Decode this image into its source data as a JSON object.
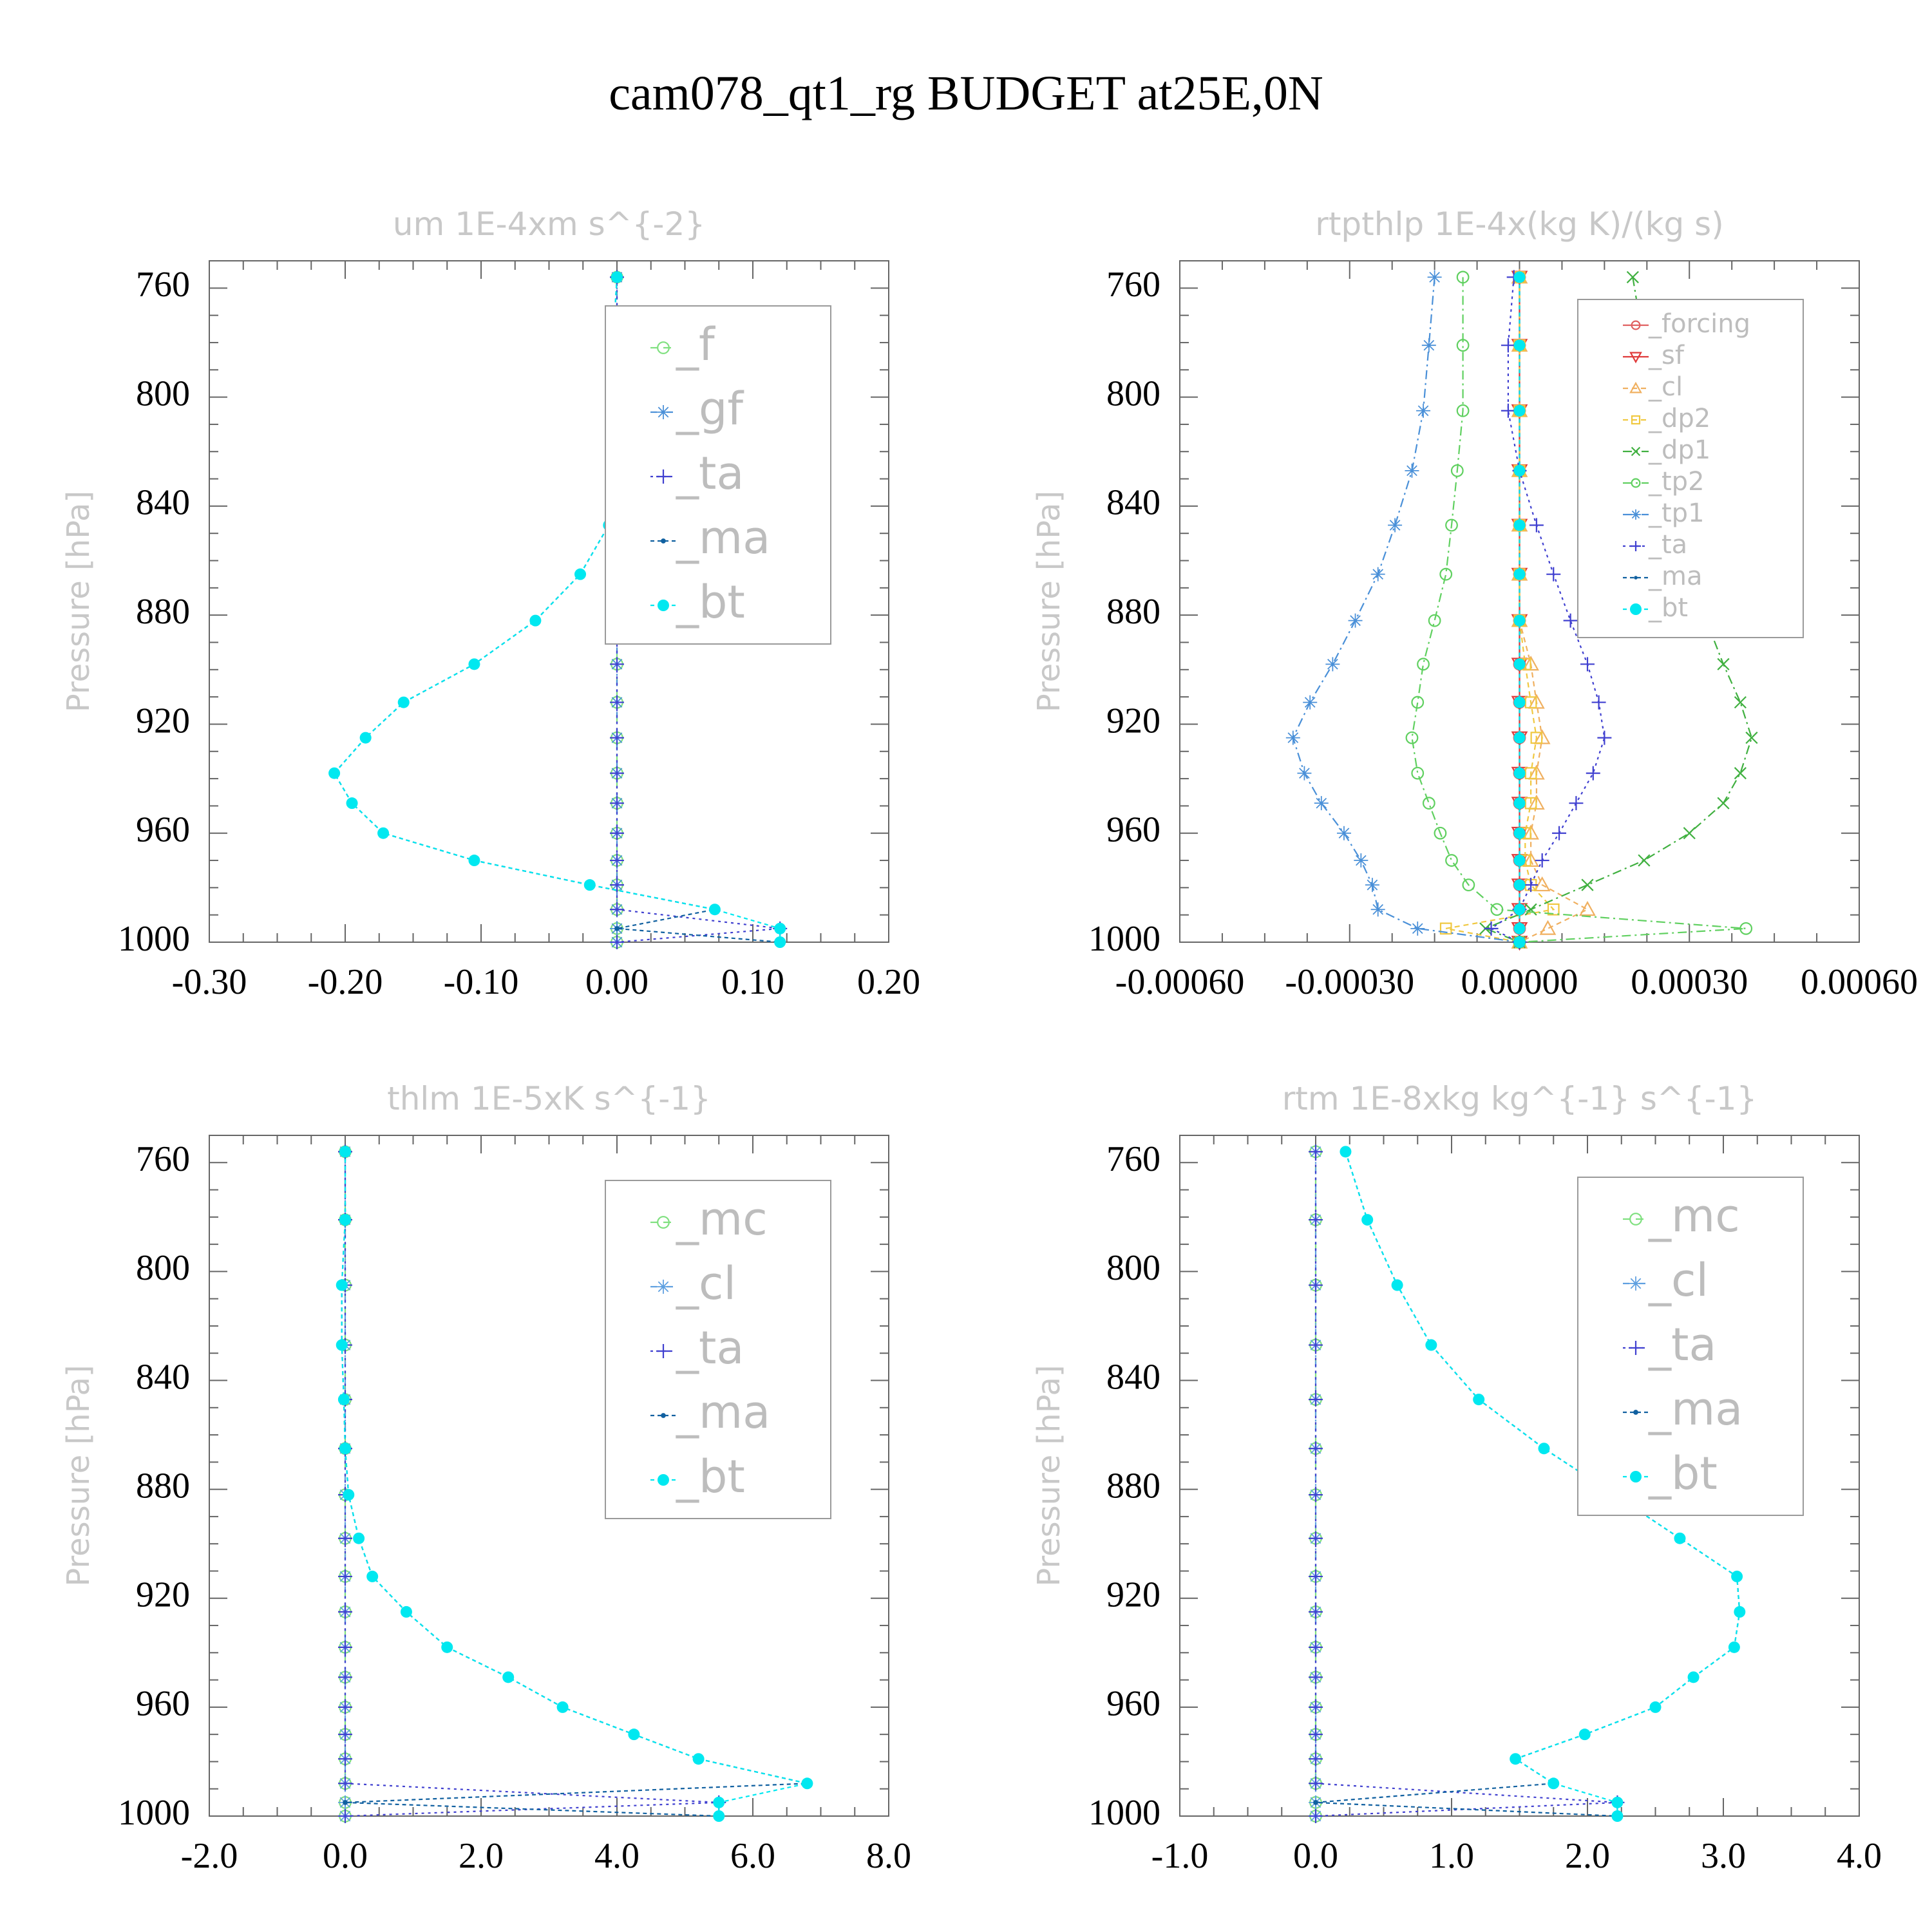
{
  "figure": {
    "title": "cam078_qt1_rg  BUDGET at25E,0N"
  },
  "colors": {
    "f": "#7fe07f",
    "forcing": "#e06060",
    "sf": "#e03a3a",
    "cl": "#5fa0e0",
    "cl_rtp": "#f0b060",
    "dp2": "#f0c840",
    "dp1": "#40b040",
    "tp2": "#60d060",
    "tp1": "#4a90d8",
    "gf": "#4a90d8",
    "mc": "#7fe07f",
    "ta": "#4040d0",
    "ma": "#1060a0",
    "bt": "#00e8f0",
    "frame": "#666666"
  },
  "chart_data": [
    {
      "id": "um",
      "type": "line",
      "title": "um  1E-4xm s^{-2}",
      "ylabel": "Pressure [hPa]",
      "xlim": [
        -0.3,
        0.2
      ],
      "ylim": [
        1000,
        750
      ],
      "x_ticks": [
        "-0.30",
        "-0.20",
        "-0.10",
        "0.00",
        "0.10",
        "0.20"
      ],
      "x_tick_values": [
        -0.3,
        -0.2,
        -0.1,
        0.0,
        0.1,
        0.2
      ],
      "y_ticks": [
        "760",
        "800",
        "840",
        "880",
        "920",
        "960",
        "1000"
      ],
      "y_tick_values": [
        760,
        800,
        840,
        880,
        920,
        960,
        1000
      ],
      "legend_position": "top-right",
      "legend_font_size": 70,
      "pressure": [
        756,
        781,
        805,
        827,
        847,
        865,
        882,
        898,
        912,
        925,
        938,
        949,
        960,
        970,
        979,
        988,
        995,
        1000
      ],
      "series": [
        {
          "name": "_f",
          "marker": "circle-open",
          "color_key": "f",
          "dash": "12 8",
          "values": [
            0,
            0,
            0,
            0,
            0,
            0,
            0,
            0,
            0,
            0,
            0,
            0,
            0,
            0,
            0,
            0,
            0,
            0
          ]
        },
        {
          "name": "_gf",
          "marker": "star",
          "color_key": "gf",
          "dash": "10 6 3 6",
          "values": [
            0,
            0,
            0,
            0,
            0,
            0,
            0,
            0,
            0,
            0,
            0,
            0,
            0,
            0,
            0,
            0,
            0,
            0
          ]
        },
        {
          "name": "_ta",
          "marker": "plus",
          "color_key": "ta",
          "dash": "4 6",
          "values": [
            0,
            0,
            0,
            0,
            0,
            0,
            0,
            0,
            0,
            0,
            0,
            0,
            0,
            0,
            0,
            0,
            0.12,
            0
          ]
        },
        {
          "name": "_ma",
          "marker": "dot",
          "color_key": "ma",
          "dash": "6 5",
          "values": [
            0.0,
            -0.003,
            0.007,
            0.006,
            -0.006,
            -0.027,
            -0.06,
            -0.105,
            -0.157,
            -0.185,
            -0.208,
            -0.195,
            -0.172,
            -0.105,
            -0.02,
            0.072,
            0.0,
            0.12
          ]
        },
        {
          "name": "_bt",
          "marker": "filled-circle",
          "color_key": "bt",
          "dash": "6 5",
          "values": [
            0.0,
            -0.003,
            0.007,
            0.006,
            -0.006,
            -0.027,
            -0.06,
            -0.105,
            -0.157,
            -0.185,
            -0.208,
            -0.195,
            -0.172,
            -0.105,
            -0.02,
            0.072,
            0.12,
            0.12
          ]
        }
      ]
    },
    {
      "id": "rtpthlp",
      "type": "line",
      "title": "rtpthlp  1E-4x(kg K)/(kg s)",
      "ylabel": "Pressure [hPa]",
      "xlim": [
        -0.0006,
        0.0006
      ],
      "ylim": [
        1000,
        750
      ],
      "x_ticks": [
        "-0.00060",
        "-0.00030",
        "0.00000",
        "0.00030",
        "0.00060"
      ],
      "x_tick_values": [
        -0.0006,
        -0.0003,
        0.0,
        0.0003,
        0.0006
      ],
      "y_ticks": [
        "760",
        "800",
        "840",
        "880",
        "920",
        "960",
        "1000"
      ],
      "y_tick_values": [
        760,
        800,
        840,
        880,
        920,
        960,
        1000
      ],
      "legend_position": "top-right",
      "legend_font_size": 40,
      "pressure": [
        756,
        781,
        805,
        827,
        847,
        865,
        882,
        898,
        912,
        925,
        938,
        949,
        960,
        970,
        979,
        988,
        995,
        1000
      ],
      "series": [
        {
          "name": "_forcing",
          "marker": "circle-open",
          "color_key": "forcing",
          "dash": "",
          "values": [
            0,
            0,
            0,
            0,
            0,
            0,
            0,
            0,
            0,
            0,
            0,
            0,
            0,
            0,
            0,
            0,
            0,
            0
          ]
        },
        {
          "name": "_sf",
          "marker": "triangle-down",
          "color_key": "sf",
          "dash": "",
          "values": [
            0,
            0,
            0,
            0,
            0,
            0,
            0,
            0,
            0,
            0,
            0,
            0,
            0,
            0,
            0,
            0,
            0,
            0
          ]
        },
        {
          "name": "_cl",
          "marker": "triangle-up",
          "color_key": "cl_rtp",
          "dash": "8 6",
          "values": [
            0,
            0,
            0,
            0,
            0,
            0,
            0,
            2e-05,
            3e-05,
            4e-05,
            3e-05,
            3e-05,
            2e-05,
            2e-05,
            4e-05,
            0.00012,
            5e-05,
            0
          ]
        },
        {
          "name": "_dp2",
          "marker": "square-open",
          "color_key": "dp2",
          "dash": "8 6",
          "values": [
            0,
            0,
            0,
            0,
            0,
            0,
            0,
            1e-05,
            2e-05,
            3e-05,
            2e-05,
            2e-05,
            1e-05,
            1e-05,
            2e-05,
            6e-05,
            -0.00013,
            0
          ]
        },
        {
          "name": "_dp1",
          "marker": "x",
          "color_key": "dp1",
          "dash": "14 6 3 6",
          "values": [
            0.0002,
            0.00022,
            0.00024,
            0.00026,
            0.00028,
            0.00031,
            0.00033,
            0.00036,
            0.00039,
            0.00041,
            0.00039,
            0.00036,
            0.0003,
            0.00022,
            0.00012,
            2e-05,
            -6e-05,
            0
          ]
        },
        {
          "name": "_tp2",
          "marker": "circle-open",
          "color_key": "tp2",
          "dash": "14 6 3 6",
          "values": [
            -0.0001,
            -0.0001,
            -0.0001,
            -0.00011,
            -0.00012,
            -0.00013,
            -0.00015,
            -0.00017,
            -0.00018,
            -0.00019,
            -0.00018,
            -0.00016,
            -0.00014,
            -0.00012,
            -9e-05,
            -4e-05,
            0.0004,
            0
          ]
        },
        {
          "name": "_tp1",
          "marker": "star",
          "color_key": "tp1",
          "dash": "14 6 3 6",
          "values": [
            -0.00015,
            -0.00016,
            -0.00017,
            -0.00019,
            -0.00022,
            -0.00025,
            -0.00029,
            -0.00033,
            -0.00037,
            -0.0004,
            -0.00038,
            -0.00035,
            -0.00031,
            -0.00028,
            -0.00026,
            -0.00025,
            -0.00018,
            0
          ]
        },
        {
          "name": "_ta",
          "marker": "plus",
          "color_key": "ta",
          "dash": "4 6",
          "values": [
            -1e-05,
            -2e-05,
            -2e-05,
            0.0,
            3e-05,
            6e-05,
            9e-05,
            0.00012,
            0.00014,
            0.00015,
            0.00013,
            0.0001,
            7e-05,
            4e-05,
            2e-05,
            0.0,
            -5e-05,
            0
          ]
        },
        {
          "name": "_ma",
          "marker": "dot",
          "color_key": "ma",
          "dash": "6 5",
          "values": [
            0,
            0,
            0,
            0,
            0,
            0,
            0,
            0,
            0,
            0,
            0,
            0,
            0,
            0,
            0,
            0,
            0,
            0
          ]
        },
        {
          "name": "_bt",
          "marker": "filled-circle",
          "color_key": "bt",
          "dash": "6 5",
          "values": [
            0,
            0,
            0,
            0,
            0,
            0,
            0,
            0,
            0,
            0,
            0,
            0,
            0,
            0,
            0,
            0,
            0,
            0
          ]
        }
      ]
    },
    {
      "id": "thlm",
      "type": "line",
      "title": "thlm  1E-5xK s^{-1}",
      "ylabel": "Pressure [hPa]",
      "xlim": [
        -2.0,
        8.0
      ],
      "ylim": [
        1000,
        750
      ],
      "x_ticks": [
        "-2.0",
        "0.0",
        "2.0",
        "4.0",
        "6.0",
        "8.0"
      ],
      "x_tick_values": [
        -2.0,
        0.0,
        2.0,
        4.0,
        6.0,
        8.0
      ],
      "y_ticks": [
        "760",
        "800",
        "840",
        "880",
        "920",
        "960",
        "1000"
      ],
      "y_tick_values": [
        760,
        800,
        840,
        880,
        920,
        960,
        1000
      ],
      "legend_position": "top-right",
      "legend_font_size": 70,
      "pressure": [
        756,
        781,
        805,
        827,
        847,
        865,
        882,
        898,
        912,
        925,
        938,
        949,
        960,
        970,
        979,
        988,
        995,
        1000
      ],
      "series": [
        {
          "name": "_mc",
          "marker": "circle-open",
          "color_key": "mc",
          "dash": "12 8",
          "values": [
            0,
            0,
            0,
            0,
            0,
            0,
            0,
            0,
            0,
            0,
            0,
            0,
            0,
            0,
            0,
            0,
            0,
            0
          ]
        },
        {
          "name": "_cl",
          "marker": "star",
          "color_key": "cl",
          "dash": "10 6 3 6",
          "values": [
            0,
            0,
            0,
            0,
            0,
            0,
            0,
            0,
            0,
            0,
            0,
            0,
            0,
            0,
            0,
            0,
            0,
            0
          ]
        },
        {
          "name": "_ta",
          "marker": "plus",
          "color_key": "ta",
          "dash": "4 6",
          "values": [
            0,
            0,
            0,
            0,
            0,
            0,
            0,
            0,
            0,
            0,
            0,
            0,
            0,
            0,
            0,
            0,
            5.5,
            0
          ]
        },
        {
          "name": "_ma",
          "marker": "dot",
          "color_key": "ma",
          "dash": "6 5",
          "values": [
            0.0,
            0.0,
            -0.05,
            -0.05,
            -0.02,
            0.0,
            0.05,
            0.2,
            0.4,
            0.9,
            1.5,
            2.4,
            3.2,
            4.25,
            5.2,
            6.8,
            0.0,
            5.5
          ]
        },
        {
          "name": "_bt",
          "marker": "filled-circle",
          "color_key": "bt",
          "dash": "6 5",
          "values": [
            0.0,
            0.0,
            -0.05,
            -0.05,
            -0.02,
            0.0,
            0.05,
            0.2,
            0.4,
            0.9,
            1.5,
            2.4,
            3.2,
            4.25,
            5.2,
            6.8,
            5.5,
            5.5
          ]
        }
      ]
    },
    {
      "id": "rtm",
      "type": "line",
      "title": "rtm  1E-8xkg kg^{-1} s^{-1}",
      "ylabel": "Pressure [hPa]",
      "xlim": [
        -1.0,
        4.0
      ],
      "ylim": [
        1000,
        750
      ],
      "x_ticks": [
        "-1.0",
        "0.0",
        "1.0",
        "2.0",
        "3.0",
        "4.0"
      ],
      "x_tick_values": [
        -1.0,
        0.0,
        1.0,
        2.0,
        3.0,
        4.0
      ],
      "y_ticks": [
        "760",
        "800",
        "840",
        "880",
        "920",
        "960",
        "1000"
      ],
      "y_tick_values": [
        760,
        800,
        840,
        880,
        920,
        960,
        1000
      ],
      "legend_position": "top-right",
      "legend_font_size": 70,
      "pressure": [
        756,
        781,
        805,
        827,
        847,
        865,
        882,
        898,
        912,
        925,
        938,
        949,
        960,
        970,
        979,
        988,
        995,
        1000
      ],
      "series": [
        {
          "name": "_mc",
          "marker": "circle-open",
          "color_key": "mc",
          "dash": "12 8",
          "values": [
            0,
            0,
            0,
            0,
            0,
            0,
            0,
            0,
            0,
            0,
            0,
            0,
            0,
            0,
            0,
            0,
            0,
            0
          ]
        },
        {
          "name": "_cl",
          "marker": "star",
          "color_key": "cl",
          "dash": "10 6 3 6",
          "values": [
            0,
            0,
            0,
            0,
            0,
            0,
            0,
            0,
            0,
            0,
            0,
            0,
            0,
            0,
            0,
            0,
            0,
            0
          ]
        },
        {
          "name": "_ta",
          "marker": "plus",
          "color_key": "ta",
          "dash": "4 6",
          "values": [
            0,
            0,
            0,
            0,
            0,
            0,
            0,
            0,
            0,
            0,
            0,
            0,
            0,
            0,
            0,
            0,
            2.22,
            0
          ]
        },
        {
          "name": "_ma",
          "marker": "dot",
          "color_key": "ma",
          "dash": "6 5",
          "values": [
            0.22,
            0.38,
            0.6,
            0.85,
            1.2,
            1.68,
            2.2,
            2.68,
            3.1,
            3.12,
            3.08,
            2.78,
            2.5,
            1.98,
            1.47,
            1.75,
            0.0,
            2.22
          ]
        },
        {
          "name": "_bt",
          "marker": "filled-circle",
          "color_key": "bt",
          "dash": "6 5",
          "values": [
            0.22,
            0.38,
            0.6,
            0.85,
            1.2,
            1.68,
            2.2,
            2.68,
            3.1,
            3.12,
            3.08,
            2.78,
            2.5,
            1.98,
            1.47,
            1.75,
            2.22,
            2.22
          ]
        }
      ]
    }
  ]
}
